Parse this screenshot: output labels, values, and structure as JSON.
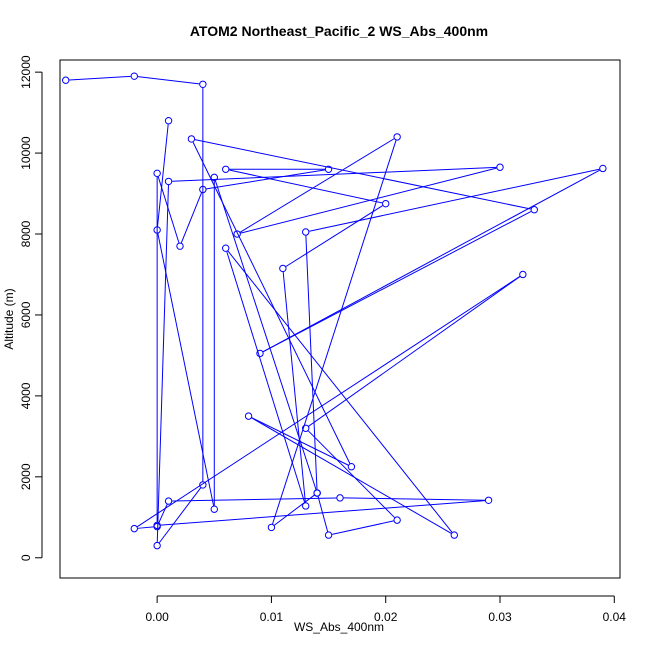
{
  "chart_data": {
    "type": "line",
    "title": "ATOM2 Northeast_Pacific_2 WS_Abs_400nm",
    "xlabel": "WS_Abs_400nm",
    "ylabel": "Altitude (m)",
    "xlim": [
      -0.0085,
      0.0405
    ],
    "ylim": [
      -500,
      12300
    ],
    "x_ticks": [
      0.0,
      0.01,
      0.02,
      0.03,
      0.04
    ],
    "x_tick_labels": [
      "0.00",
      "0.01",
      "0.02",
      "0.03",
      "0.04"
    ],
    "y_ticks": [
      0,
      2000,
      4000,
      6000,
      8000,
      10000,
      12000
    ],
    "y_tick_labels": [
      "0",
      "2000",
      "4000",
      "6000",
      "8000",
      "10000",
      "12000"
    ],
    "grid": false,
    "legend": "none",
    "color": "#0000ff",
    "series": [
      {
        "points": [
          [
            -0.008,
            11800
          ],
          [
            -0.002,
            11900
          ],
          [
            0.004,
            11700
          ],
          [
            0.004,
            1800
          ],
          [
            0.0,
            300
          ],
          [
            0.001,
            9300
          ],
          [
            0.03,
            9650
          ],
          [
            0.007,
            8000
          ],
          [
            0.021,
            10400
          ],
          [
            0.01,
            750
          ],
          [
            0.014,
            1600
          ],
          [
            0.013,
            8050
          ],
          [
            0.039,
            9620
          ],
          [
            0.009,
            5050
          ],
          [
            0.033,
            8600
          ],
          [
            0.003,
            10350
          ],
          [
            0.017,
            2250
          ],
          [
            0.008,
            3500
          ],
          [
            0.026,
            560
          ],
          [
            0.006,
            7650
          ],
          [
            0.013,
            1280
          ],
          [
            0.011,
            7150
          ],
          [
            0.02,
            8750
          ],
          [
            0.006,
            9600
          ],
          [
            0.015,
            9600
          ],
          [
            0.004,
            9100
          ],
          [
            0.002,
            7700
          ],
          [
            0.0,
            9500
          ],
          [
            0.0,
            800
          ],
          [
            0.029,
            1420
          ],
          [
            0.016,
            1480
          ],
          [
            0.001,
            1400
          ],
          [
            0.0,
            770
          ],
          [
            -0.002,
            720
          ],
          [
            0.032,
            7000
          ],
          [
            0.013,
            3200
          ],
          [
            0.021,
            930
          ],
          [
            0.015,
            560
          ],
          [
            0.014,
            1600
          ],
          [
            0.005,
            9400
          ],
          [
            0.005,
            1200
          ],
          [
            0.0,
            8100
          ],
          [
            0.001,
            10800
          ]
        ]
      }
    ]
  }
}
